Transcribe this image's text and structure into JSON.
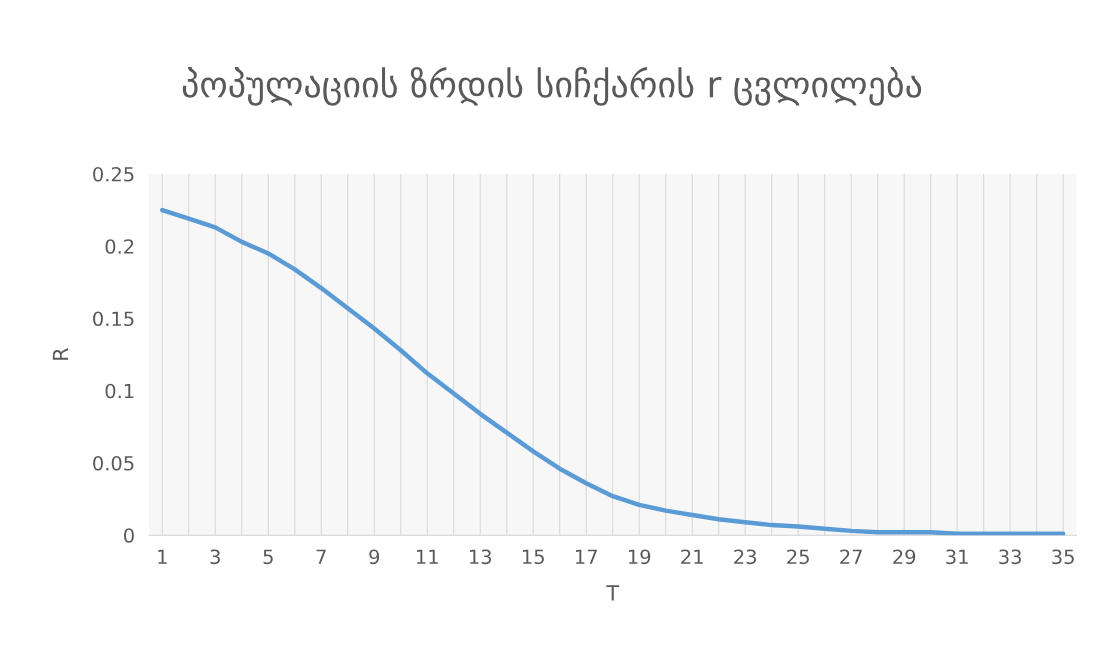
{
  "chart_data": {
    "type": "line",
    "title": "პოპულაციის ზრდის სიჩქარის r ცვლილება",
    "xlabel": "T",
    "ylabel": "R",
    "categories": [
      "1",
      null,
      "3",
      null,
      "5",
      null,
      "7",
      null,
      "9",
      null,
      "11",
      null,
      "13",
      null,
      "15",
      null,
      "17",
      null,
      "19",
      null,
      "21",
      null,
      "23",
      null,
      "25",
      null,
      "27",
      null,
      "29",
      null,
      "31",
      null,
      "33",
      null,
      "35"
    ],
    "series": [
      {
        "color": "#5b9bd5",
        "values": [
          0.225,
          0.219,
          0.213,
          0.203,
          0.195,
          0.184,
          0.171,
          0.157,
          0.143,
          0.128,
          0.112,
          0.098,
          0.084,
          0.071,
          0.058,
          0.046,
          0.036,
          0.027,
          0.021,
          0.017,
          0.014,
          0.011,
          0.009,
          0.007,
          0.006,
          0.0045,
          0.003,
          0.002,
          0.002,
          0.002,
          0.001,
          0.001,
          0.001,
          0.001,
          0.001
        ]
      }
    ],
    "ylim": [
      0,
      0.25
    ],
    "yticks": [
      0,
      0.05,
      0.1,
      0.15,
      0.2,
      0.25
    ],
    "grid": "x",
    "marker": "none",
    "line_style": "solid"
  }
}
